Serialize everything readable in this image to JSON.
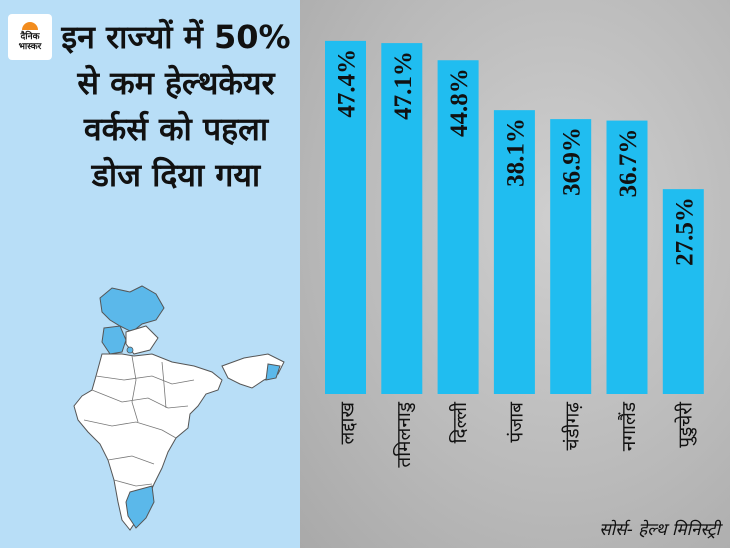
{
  "logo": {
    "line1": "दैनिक",
    "line2": "भास्कर",
    "accent": "#f28c1e"
  },
  "headline": "इन राज्यों में 50% से कम हेल्थकेयर वर्कर्स को पहला डोज दिया गया",
  "source": "सोर्स- हेल्थ मिनिस्ट्री",
  "colors": {
    "bar": "#20bdf0",
    "panel": "#b8def7",
    "map_highlight": "#5bb8ea"
  },
  "chart_data": {
    "type": "bar",
    "categories": [
      "लद्दाख",
      "तमिलनाडु",
      "दिल्ली",
      "पंजाब",
      "चंडीगढ़",
      "नगालैंड",
      "पुडुचेरी"
    ],
    "values": [
      47.4,
      47.1,
      44.8,
      38.1,
      36.9,
      36.7,
      27.5
    ],
    "value_labels": [
      "47.4%",
      "47.1%",
      "44.8%",
      "38.1%",
      "36.9%",
      "36.7%",
      "27.5%"
    ],
    "title": "",
    "xlabel": "",
    "ylabel": "",
    "ylim": [
      0,
      100
    ],
    "grid": false,
    "legend": "none"
  }
}
